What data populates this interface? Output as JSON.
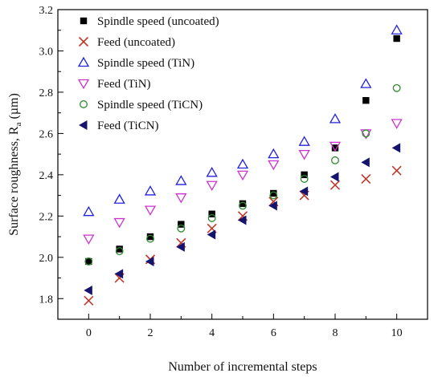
{
  "chart_data": {
    "type": "scatter",
    "title": "",
    "xlabel": "Number of incremental steps",
    "ylabel": "Surface roughness, R",
    "ylabel_subscript": "a",
    "ylabel_unit": " (µm)",
    "xlim": [
      -1,
      11
    ],
    "ylim": [
      1.7,
      3.2
    ],
    "x_ticks": [
      0,
      2,
      4,
      6,
      8,
      10
    ],
    "y_ticks": [
      "1.8",
      "2.0",
      "2.2",
      "2.4",
      "2.6",
      "2.8",
      "3.0",
      "3.2"
    ],
    "grid": false,
    "legend_position": "top-left",
    "x": [
      0,
      1,
      2,
      3,
      4,
      5,
      6,
      7,
      8,
      9,
      10
    ],
    "series": [
      {
        "name": "Spindle speed (uncoated)",
        "marker": "filled-square",
        "color": "#000000",
        "values": [
          1.98,
          2.04,
          2.1,
          2.16,
          2.21,
          2.26,
          2.31,
          2.4,
          2.53,
          2.76,
          3.06
        ]
      },
      {
        "name": "Feed (uncoated)",
        "marker": "x",
        "color": "#c0392b",
        "values": [
          1.79,
          1.9,
          1.99,
          2.07,
          2.14,
          2.2,
          2.27,
          2.3,
          2.35,
          2.38,
          2.42
        ]
      },
      {
        "name": "Spindle speed (TiN)",
        "marker": "open-triangle-up",
        "color": "#2222dd",
        "values": [
          2.22,
          2.28,
          2.32,
          2.37,
          2.41,
          2.45,
          2.5,
          2.56,
          2.67,
          2.84,
          3.1
        ]
      },
      {
        "name": "Feed (TiN)",
        "marker": "open-triangle-down",
        "color": "#cc33cc",
        "values": [
          2.09,
          2.17,
          2.23,
          2.29,
          2.35,
          2.4,
          2.45,
          2.5,
          2.54,
          2.6,
          2.65
        ]
      },
      {
        "name": "Spindle speed (TiCN)",
        "marker": "open-circle",
        "color": "#2e8b2e",
        "values": [
          1.98,
          2.03,
          2.09,
          2.14,
          2.19,
          2.25,
          2.3,
          2.38,
          2.47,
          2.6,
          2.82
        ]
      },
      {
        "name": "Feed (TiCN)",
        "marker": "filled-triangle-left",
        "color": "#14146e",
        "values": [
          1.84,
          1.92,
          1.98,
          2.05,
          2.11,
          2.18,
          2.25,
          2.32,
          2.39,
          2.46,
          2.53
        ]
      }
    ]
  }
}
